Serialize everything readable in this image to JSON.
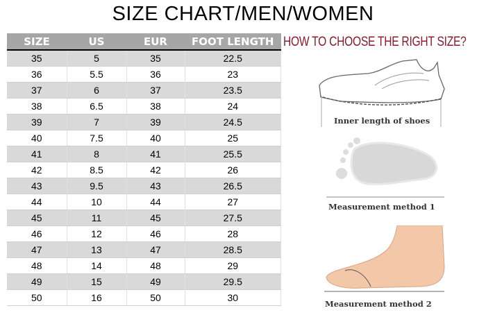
{
  "title": "SIZE CHART/MEN/WOMEN",
  "table": {
    "headers": [
      "SIZE",
      "US",
      "EUR",
      "FOOT LENGTH"
    ],
    "rows": [
      [
        "35",
        "5",
        "35",
        "22.5"
      ],
      [
        "36",
        "5.5",
        "36",
        "23"
      ],
      [
        "37",
        "6",
        "37",
        "23.5"
      ],
      [
        "38",
        "6.5",
        "38",
        "24"
      ],
      [
        "39",
        "7",
        "39",
        "24.5"
      ],
      [
        "40",
        "7.5",
        "40",
        "25"
      ],
      [
        "41",
        "8",
        "41",
        "25.5"
      ],
      [
        "42",
        "8.5",
        "42",
        "26"
      ],
      [
        "43",
        "9.5",
        "43",
        "26.5"
      ],
      [
        "44",
        "10",
        "44",
        "27"
      ],
      [
        "45",
        "11",
        "45",
        "27.5"
      ],
      [
        "46",
        "12",
        "46",
        "28"
      ],
      [
        "47",
        "13",
        "47",
        "28.5"
      ],
      [
        "48",
        "14",
        "48",
        "29"
      ],
      [
        "49",
        "15",
        "49",
        "29.5"
      ],
      [
        "50",
        "16",
        "50",
        "30"
      ]
    ]
  },
  "guide": {
    "heading": "HOW TO CHOOSE THE RIGHT SIZE?",
    "shoe_caption": "Inner length of shoes",
    "method1_caption": "Measurement method 1",
    "method2_caption": "Measurement method 2",
    "heading_color": "#8b1a2b"
  }
}
